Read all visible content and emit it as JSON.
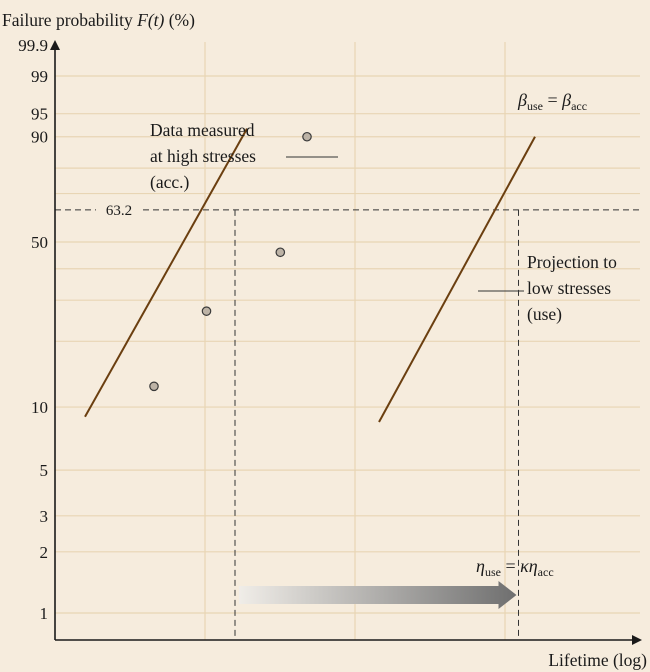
{
  "chart_data": {
    "type": "line",
    "title": "",
    "ylabel_main": "Failure probability ",
    "ylabel_math": "F(t)",
    "ylabel_unit": " (%)",
    "xlabel": "Lifetime (log)",
    "yscale": "weibull",
    "ylim": [
      0.7,
      99.9
    ],
    "y_ticks": [
      {
        "value": 99.9,
        "label": "99.9"
      },
      {
        "value": 99,
        "label": "99"
      },
      {
        "value": 95,
        "label": "95"
      },
      {
        "value": 90,
        "label": "90"
      },
      {
        "value": 50,
        "label": "50"
      },
      {
        "value": 10,
        "label": "10"
      },
      {
        "value": 5,
        "label": "5"
      },
      {
        "value": 3,
        "label": "3"
      },
      {
        "value": 2,
        "label": "2"
      },
      {
        "value": 1,
        "label": "1"
      }
    ],
    "y_grid_only": [
      80,
      70,
      40,
      30,
      20
    ],
    "reference_line": {
      "value": 63.2,
      "label": "63.2"
    },
    "series": [
      {
        "name": "Data measured at high stresses (acc.)",
        "line": [
          [
            0.1,
            9.0
          ],
          [
            0.64,
            92.0
          ]
        ],
        "points": [
          [
            0.33,
            12.5
          ],
          [
            0.505,
            27.0
          ],
          [
            0.751,
            46.0
          ],
          [
            0.84,
            90.0
          ]
        ]
      },
      {
        "name": "Projection to low stresses (use)",
        "line": [
          [
            1.08,
            8.5
          ],
          [
            1.6,
            90.0
          ]
        ],
        "points": []
      }
    ],
    "eta_acc_x": 0.6,
    "eta_use_x": 1.545,
    "annotations": {
      "data_label": [
        "Data measured",
        "at high stresses",
        "(acc.)"
      ],
      "proj_label": [
        "Projection to",
        "low stresses",
        "(use)"
      ],
      "beta_eq": {
        "lhs": "β",
        "lhs_sub": "use",
        "eq": " = ",
        "rhs": "β",
        "rhs_sub": "acc"
      },
      "eta_eq": {
        "lhs": "η",
        "lhs_sub": "use",
        "eq": " = ",
        "mid": "κη",
        "rhs_sub": "acc"
      }
    },
    "grid": true,
    "colors": {
      "background": "#f6ecdd",
      "grid": "#e8d5b4",
      "line": "#6b3f10",
      "axis": "#1a1a1a",
      "point_fill": "#bdb3a6",
      "arrow_start": "#f0ede8",
      "arrow_end": "#6f6f6f"
    }
  }
}
